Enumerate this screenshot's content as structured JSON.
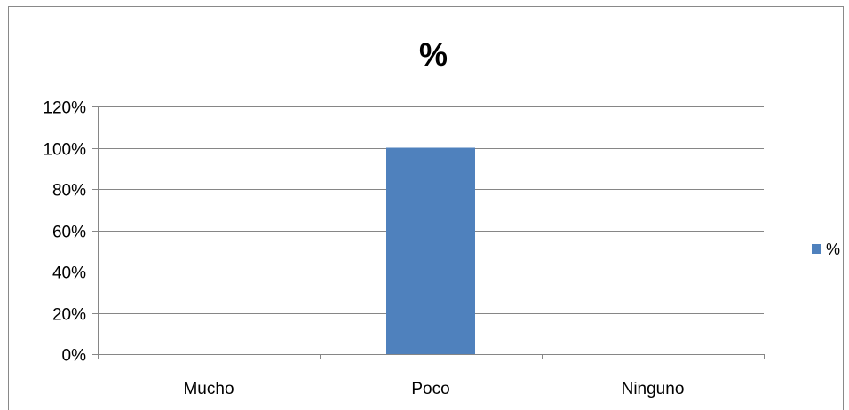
{
  "chart_data": {
    "type": "bar",
    "title": "%",
    "categories": [
      "Mucho",
      "Poco",
      "Ninguno"
    ],
    "series": [
      {
        "name": "%",
        "values": [
          0,
          100,
          0
        ],
        "color": "#4F81BD"
      }
    ],
    "ylim": [
      0,
      120
    ],
    "yticks": [
      "0%",
      "20%",
      "40%",
      "60%",
      "80%",
      "100%",
      "120%"
    ],
    "xlabel": "",
    "ylabel": "",
    "grid": true,
    "legend": "right"
  }
}
